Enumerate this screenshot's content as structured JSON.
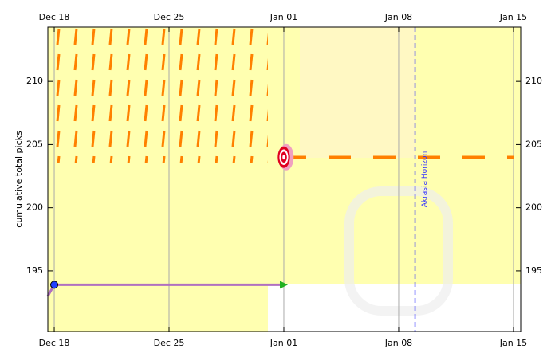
{
  "chart_data": {
    "type": "line",
    "y_label": "cumulative total picks",
    "xlim": [
      -0.39,
      28.44
    ],
    "xticks": [
      {
        "value": 0,
        "label": "Dec 18"
      },
      {
        "value": 7,
        "label": "Dec 25"
      },
      {
        "value": 14,
        "label": "Jan 01"
      },
      {
        "value": 21,
        "label": "Jan 08"
      },
      {
        "value": 28,
        "label": "Jan 15"
      }
    ],
    "ylim": [
      190.2,
      214.3
    ],
    "yticks": [
      195,
      200,
      205,
      210
    ],
    "x": [
      -0.39,
      0,
      14
    ],
    "values": [
      193,
      193.9,
      193.9
    ],
    "color": "#b070c0",
    "road": {
      "x": [
        14,
        28
      ],
      "values": [
        204,
        204
      ],
      "color": "#ff8000"
    },
    "target": {
      "x": 14,
      "value": 204
    },
    "horizon": {
      "x": 22,
      "label": "Akrasia Horizon",
      "color": "#3030ff"
    }
  }
}
